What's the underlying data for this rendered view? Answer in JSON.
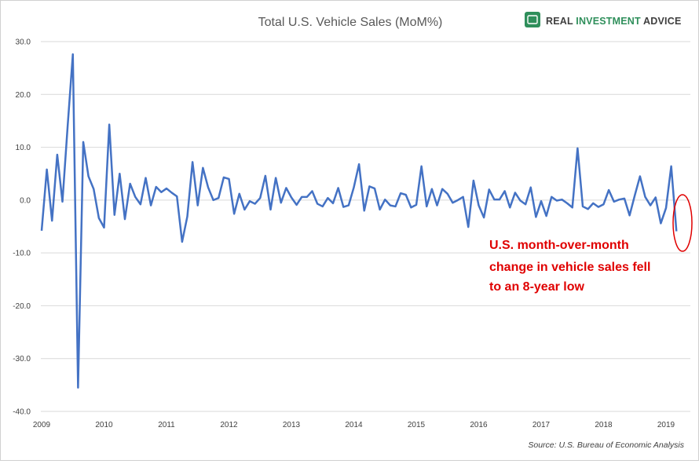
{
  "chart_data": {
    "type": "line",
    "title": "Total U.S. Vehicle Sales (MoM%)",
    "source": "Source: U.S. Bureau of Economic Analysis",
    "logo": {
      "part1": "REAL ",
      "part2": "INVESTMENT",
      "part3": " ADVICE"
    },
    "annotation": [
      "U.S. month-over-month",
      "change in vehicle sales fell",
      "to an 8-year low"
    ],
    "xlabel": "",
    "ylabel": "",
    "ylim": [
      -40,
      30
    ],
    "yticks": [
      30,
      20,
      10,
      0,
      -10,
      -20,
      -30,
      -40
    ],
    "ytick_labels": [
      "30.0",
      "20.0",
      "10.0",
      "0.0",
      "-10.0",
      "-20.0",
      "-30.0",
      "-40.0"
    ],
    "xticks": [
      "2009",
      "2010",
      "2011",
      "2012",
      "2013",
      "2014",
      "2015",
      "2016",
      "2017",
      "2018",
      "2019"
    ],
    "x_start_year": 2009,
    "x_start_month": 1,
    "line_color": "#4472c4",
    "annotation_color": "#e00000",
    "grid": true,
    "series": [
      {
        "values": [
          -5.8,
          5.8,
          -3.9,
          8.6,
          -0.3,
          14.0,
          27.6,
          -35.5,
          11.0,
          4.5,
          2.1,
          -3.4,
          -5.2,
          14.3,
          -2.8,
          5.0,
          -3.6,
          3.1,
          0.6,
          -0.8,
          4.2,
          -1.0,
          2.5,
          1.5,
          2.2,
          1.4,
          0.7,
          -7.9,
          -3.1,
          7.2,
          -1.0,
          6.1,
          2.4,
          0.0,
          0.4,
          4.3,
          4.0,
          -2.6,
          1.2,
          -1.8,
          -0.2,
          -0.7,
          0.4,
          4.6,
          -1.8,
          4.2,
          -0.5,
          2.3,
          0.5,
          -0.9,
          0.6,
          0.6,
          1.7,
          -0.7,
          -1.2,
          0.4,
          -0.6,
          2.3,
          -1.3,
          -1.0,
          2.4,
          6.8,
          -2.0,
          2.6,
          2.2,
          -1.8,
          0.1,
          -1.0,
          -1.2,
          1.3,
          1.0,
          -1.4,
          -0.9,
          6.4,
          -1.2,
          2.1,
          -1.0,
          2.1,
          1.2,
          -0.5,
          0.0,
          0.6,
          -5.1,
          3.7,
          -1.0,
          -3.3,
          2.0,
          0.1,
          0.1,
          1.7,
          -1.4,
          1.4,
          -0.1,
          -0.8,
          2.4,
          -3.2,
          -0.2,
          -3.0,
          0.6,
          -0.1,
          0.1,
          -0.6,
          -1.4,
          9.8,
          -1.2,
          -1.7,
          -0.6,
          -1.3,
          -0.8,
          1.9,
          -0.3,
          0.1,
          0.3,
          -2.9,
          0.9,
          4.5,
          0.6,
          -1.0,
          0.5,
          -4.4,
          -1.5,
          6.4,
          -5.9
        ]
      }
    ]
  }
}
